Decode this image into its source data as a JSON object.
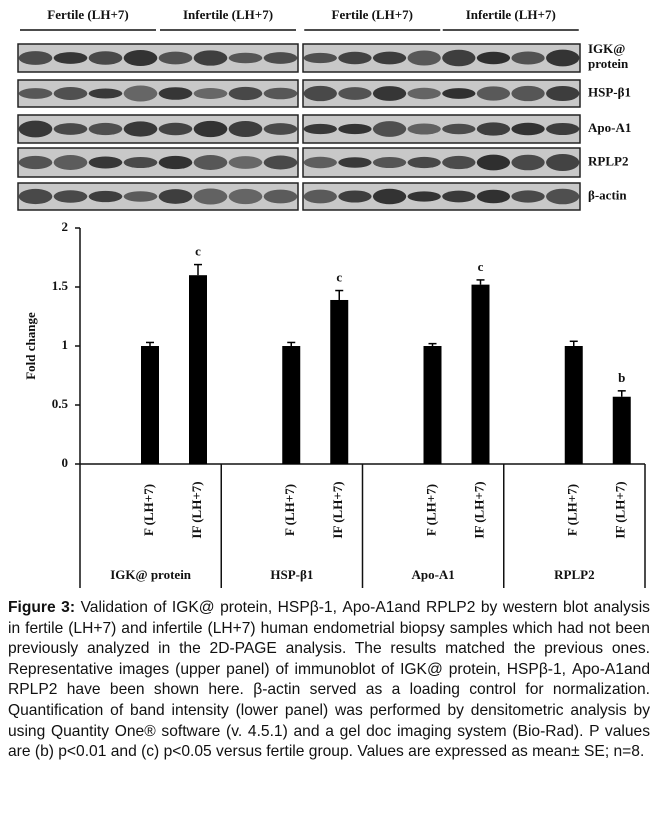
{
  "blot": {
    "headers": [
      "Fertile (LH+7)",
      "Infertile (LH+7)"
    ],
    "rows": [
      "IGK@ protein",
      "HSP-β1",
      "Apo-A1",
      "RPLP2",
      "β-actin"
    ]
  },
  "chart_data": {
    "type": "bar",
    "y_label": "Fold change",
    "categories": [
      "IGK@ protein",
      "HSP-β1",
      "Apo-A1",
      "RPLP2"
    ],
    "series": [
      {
        "name": "F (LH+7)",
        "color": "#000000",
        "values": [
          1,
          1,
          1,
          1
        ],
        "errors": [
          0.03,
          0.03,
          0.02,
          0.04
        ]
      },
      {
        "name": "IF (LH+7)",
        "color": "#000000",
        "values": [
          1.6,
          1.39,
          1.52,
          0.57
        ],
        "errors": [
          0.09,
          0.08,
          0.04,
          0.05
        ],
        "annotations": [
          "c",
          "c",
          "c",
          "b"
        ]
      }
    ],
    "ylim": [
      0,
      2
    ],
    "yticks": [
      0,
      0.5,
      1,
      1.5,
      2
    ]
  },
  "caption": {
    "label": "Figure 3:",
    "text": "Validation of IGK@ protein, HSPβ-1, Apo-A1and RPLP2 by western blot analysis in fertile (LH+7) and infertile (LH+7) human endometrial biopsy samples which had not been previously analyzed in the 2D-PAGE analysis. The results matched the previous ones. Representative images (upper panel) of immunoblot of IGK@ protein, HSPβ-1, Apo-A1and RPLP2 have been shown here. β-actin served as a loading control for normalization. Quantification of band intensity (lower panel) was performed by densitometric analysis by using Quantity One® software (v. 4.5.1) and a gel doc imaging system (Bio-Rad). P values are (b) p<0.01 and (c) p<0.05 versus fertile group. Values are expressed as mean± SE; n=8."
  }
}
